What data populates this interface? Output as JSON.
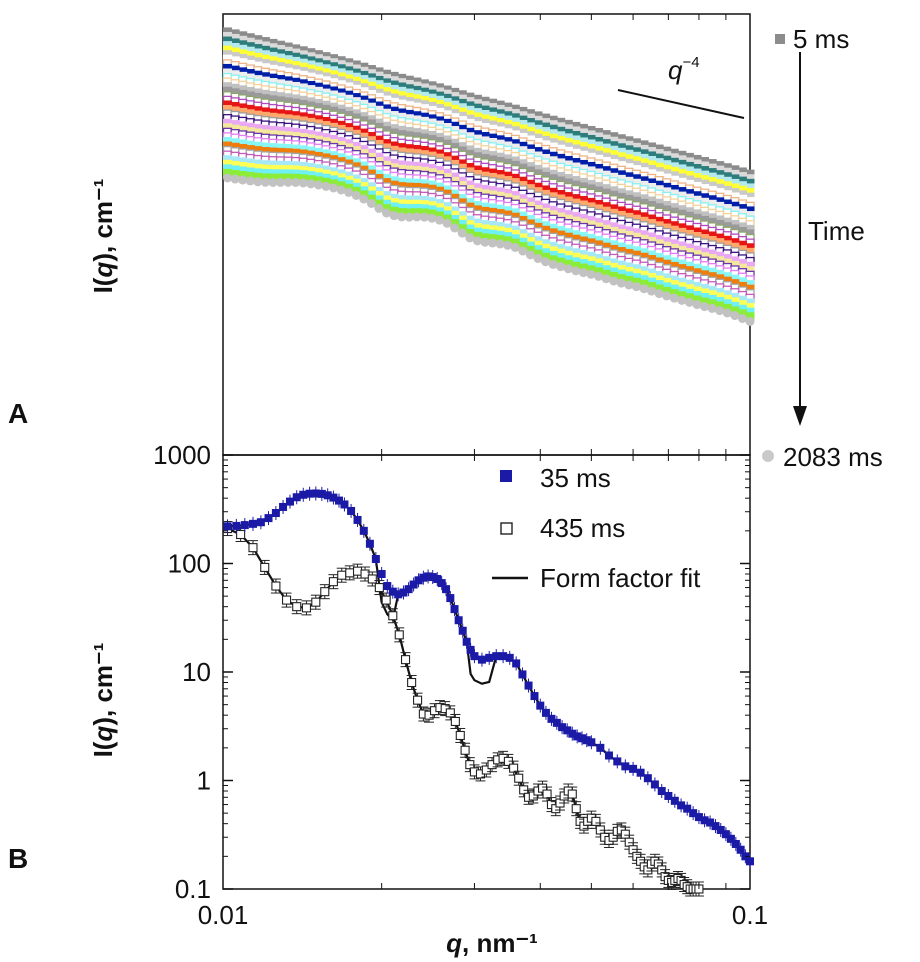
{
  "chart_data": [
    {
      "panel": "A",
      "type": "scatter",
      "x_scale": "log",
      "y_scale": "log",
      "xlim": [
        0.01,
        0.1
      ],
      "ylabel_prefix": "I(",
      "ylabel_var": "q",
      "ylabel_suffix": "), cm⁻¹",
      "annotations": {
        "slope_label": "q",
        "slope_exp": "−4",
        "time_label": "Time",
        "first_label": "5 ms",
        "last_label": "2083 ms"
      },
      "series_colors": [
        "#8c8c8c",
        "#dadada",
        "#2e7d7d",
        "#b4e9ee",
        "#ffff33",
        "#c9c9c9",
        "#ffffff",
        "#eeb488",
        "#001ea8",
        "#ededed",
        "#8bf0f0",
        "#f5d29c",
        "#c0c0c0",
        "#9a9a9a",
        "#8da46e",
        "#b04bbf",
        "#e61616",
        "#ffa86c",
        "#9e9e9e",
        "#3a1280",
        "#e8a8f2",
        "#f3e89d",
        "#6a36ab",
        "#e37cf0",
        "#89f5f5",
        "#ef7d0b",
        "#a3a3a3",
        "#c45bb8",
        "#a7e8f6",
        "#ffff55",
        "#6ef0f5",
        "#8bed38",
        "#c2c2c2"
      ],
      "series_count": 33
    },
    {
      "panel": "B",
      "type": "scatter",
      "x_scale": "log",
      "y_scale": "log",
      "xlim": [
        0.01,
        0.1
      ],
      "ylim": [
        0.1,
        1000
      ],
      "xlabel_var": "q",
      "xlabel_suffix": ", nm⁻¹",
      "ylabel_prefix": "I(",
      "ylabel_var": "q",
      "ylabel_suffix": "), cm⁻¹",
      "x_ticks": [
        "0.01",
        "0.1"
      ],
      "y_ticks": [
        "0.1",
        "1",
        "10",
        "100",
        "1000"
      ],
      "legend_position": "top-right",
      "series": [
        {
          "name": "35 ms",
          "marker": "filled-square",
          "color": "#1a1aa6",
          "x": [
            0.0102,
            0.0106,
            0.011,
            0.0114,
            0.0118,
            0.0122,
            0.0126,
            0.013,
            0.0134,
            0.0138,
            0.0142,
            0.0146,
            0.015,
            0.0154,
            0.0158,
            0.0162,
            0.0166,
            0.017,
            0.0175,
            0.018,
            0.0185,
            0.019,
            0.0195,
            0.02,
            0.0205,
            0.021,
            0.0215,
            0.022,
            0.0225,
            0.023,
            0.0235,
            0.024,
            0.0245,
            0.025,
            0.0255,
            0.026,
            0.0265,
            0.027,
            0.0275,
            0.028,
            0.0285,
            0.029,
            0.0295,
            0.03,
            0.031,
            0.032,
            0.033,
            0.034,
            0.035,
            0.036,
            0.037,
            0.038,
            0.039,
            0.04,
            0.041,
            0.042,
            0.043,
            0.044,
            0.045,
            0.046,
            0.047,
            0.048,
            0.049,
            0.05,
            0.052,
            0.054,
            0.056,
            0.058,
            0.06,
            0.062,
            0.064,
            0.066,
            0.068,
            0.07,
            0.072,
            0.074,
            0.076,
            0.078,
            0.08,
            0.082,
            0.084,
            0.086,
            0.088,
            0.09,
            0.092,
            0.094,
            0.096,
            0.098,
            0.1
          ],
          "y": [
            220,
            222,
            226,
            232,
            240,
            262,
            292,
            332,
            372,
            408,
            430,
            440,
            442,
            438,
            425,
            405,
            380,
            350,
            305,
            252,
            200,
            152,
            110,
            80,
            62,
            55,
            52,
            54,
            58,
            64,
            70,
            74,
            76,
            75,
            72,
            66,
            58,
            48,
            38,
            30,
            24,
            19,
            16,
            14,
            13,
            13.5,
            14,
            14,
            13.5,
            12,
            9.5,
            7.5,
            6,
            4.9,
            4.2,
            3.7,
            3.4,
            3.1,
            2.9,
            2.7,
            2.55,
            2.45,
            2.35,
            2.25,
            2.0,
            1.7,
            1.5,
            1.35,
            1.28,
            1.18,
            1.05,
            0.92,
            0.8,
            0.72,
            0.65,
            0.59,
            0.55,
            0.5,
            0.46,
            0.43,
            0.41,
            0.38,
            0.35,
            0.32,
            0.29,
            0.26,
            0.23,
            0.2,
            0.18
          ]
        },
        {
          "name": "435 ms",
          "marker": "open-square",
          "color": "#222222",
          "x": [
            0.0102,
            0.0108,
            0.0114,
            0.012,
            0.0126,
            0.0132,
            0.0138,
            0.0144,
            0.015,
            0.0156,
            0.0162,
            0.0168,
            0.0174,
            0.018,
            0.0186,
            0.0192,
            0.0198,
            0.0204,
            0.021,
            0.0216,
            0.0222,
            0.0228,
            0.0234,
            0.024,
            0.0246,
            0.0252,
            0.0258,
            0.0264,
            0.027,
            0.0276,
            0.0282,
            0.0288,
            0.0294,
            0.03,
            0.0308,
            0.0316,
            0.0324,
            0.0332,
            0.034,
            0.0348,
            0.0356,
            0.0364,
            0.0372,
            0.038,
            0.0388,
            0.0396,
            0.0404,
            0.0412,
            0.042,
            0.0428,
            0.0436,
            0.0444,
            0.0452,
            0.046,
            0.0468,
            0.0476,
            0.0484,
            0.0492,
            0.05,
            0.051,
            0.052,
            0.053,
            0.054,
            0.055,
            0.056,
            0.057,
            0.058,
            0.059,
            0.06,
            0.061,
            0.062,
            0.063,
            0.064,
            0.065,
            0.066,
            0.067,
            0.068,
            0.069,
            0.07,
            0.071,
            0.072,
            0.073,
            0.074,
            0.075,
            0.076,
            0.077,
            0.078,
            0.079,
            0.08
          ],
          "y": [
            210,
            185,
            140,
            92,
            62,
            46,
            40,
            39,
            44,
            55,
            68,
            78,
            82,
            85,
            80,
            72,
            60,
            46,
            33,
            22,
            13,
            8,
            5.5,
            4.1,
            4.0,
            4.4,
            4.7,
            4.6,
            4.2,
            3.5,
            2.6,
            1.9,
            1.4,
            1.2,
            1.15,
            1.25,
            1.4,
            1.55,
            1.6,
            1.5,
            1.3,
            1.05,
            0.82,
            0.7,
            0.72,
            0.8,
            0.85,
            0.75,
            0.6,
            0.55,
            0.62,
            0.72,
            0.8,
            0.75,
            0.55,
            0.42,
            0.38,
            0.42,
            0.45,
            0.42,
            0.35,
            0.3,
            0.28,
            0.3,
            0.34,
            0.35,
            0.32,
            0.27,
            0.23,
            0.2,
            0.18,
            0.16,
            0.15,
            0.17,
            0.18,
            0.17,
            0.15,
            0.13,
            0.12,
            0.115,
            0.12,
            0.125,
            0.12,
            0.11,
            0.105,
            0.1,
            0.1,
            0.1,
            0.1
          ]
        },
        {
          "name": "Form factor fit",
          "marker": "line",
          "color": "#111111"
        }
      ]
    }
  ],
  "panel_letters": {
    "a": "A",
    "b": "B"
  }
}
